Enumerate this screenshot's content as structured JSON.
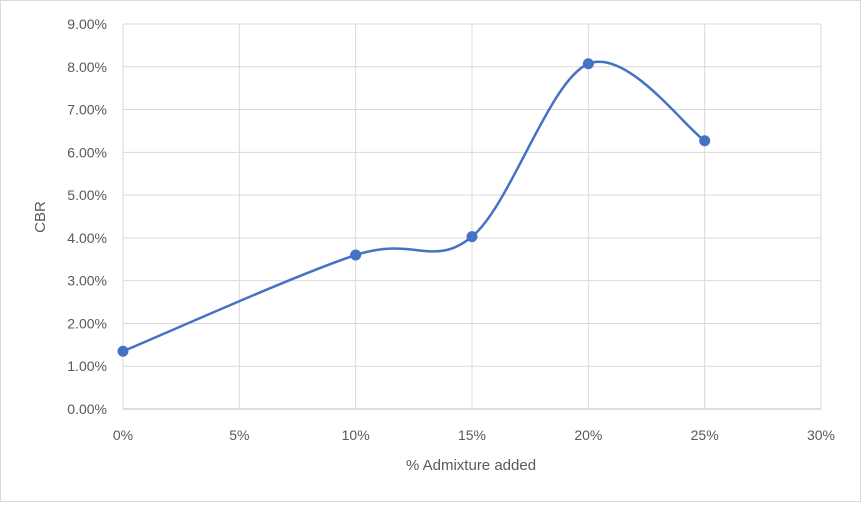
{
  "chart_data": {
    "type": "line",
    "title": "",
    "xlabel": "% Admixture added",
    "ylabel": "CBR",
    "x": [
      0,
      10,
      15,
      20,
      25
    ],
    "series": [
      {
        "values": [
          0.0135,
          0.036,
          0.0403,
          0.0807,
          0.0627
        ],
        "color": "#4472c4",
        "smooth": true,
        "markers": true
      }
    ],
    "xlim": [
      0,
      30
    ],
    "ylim": [
      0,
      0.09
    ],
    "x_ticks": [
      0,
      5,
      10,
      15,
      20,
      25,
      30
    ],
    "x_tick_labels": [
      "0%",
      "5%",
      "10%",
      "15%",
      "20%",
      "25%",
      "30%"
    ],
    "y_ticks": [
      0,
      0.01,
      0.02,
      0.03,
      0.04,
      0.05,
      0.06,
      0.07,
      0.08,
      0.09
    ],
    "y_tick_labels": [
      "0.00%",
      "1.00%",
      "2.00%",
      "3.00%",
      "4.00%",
      "5.00%",
      "6.00%",
      "7.00%",
      "8.00%",
      "9.00%"
    ],
    "grid": true,
    "legend": "none"
  }
}
